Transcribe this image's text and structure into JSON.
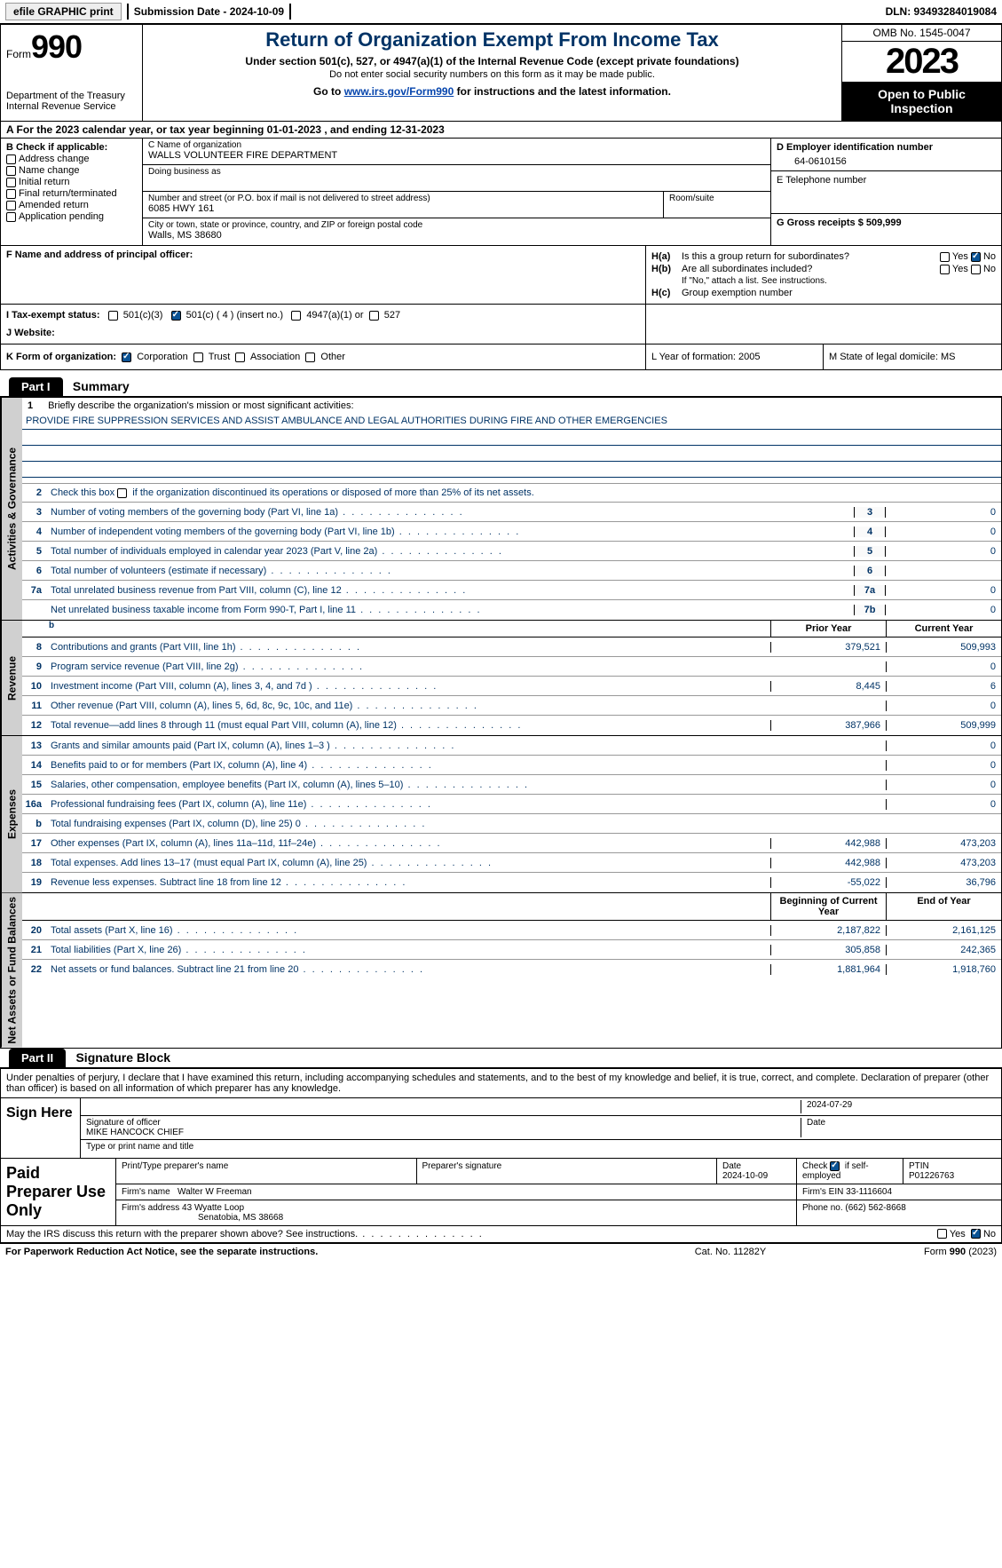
{
  "colors": {
    "header_blue": "#003366",
    "link": "#0645ad",
    "side_gray": "#d0d0d0",
    "shade": "#cccccc"
  },
  "topbar": {
    "efile": "efile GRAPHIC print",
    "submission_label": "Submission Date - 2024-10-09",
    "dln_label": "DLN: 93493284019084"
  },
  "header": {
    "form_word": "Form",
    "form_num": "990",
    "dept": "Department of the Treasury",
    "irs": "Internal Revenue Service",
    "title": "Return of Organization Exempt From Income Tax",
    "sub1": "Under section 501(c), 527, or 4947(a)(1) of the Internal Revenue Code (except private foundations)",
    "sub2": "Do not enter social security numbers on this form as it may be made public.",
    "goto_pre": "Go to ",
    "goto_link": "www.irs.gov/Form990",
    "goto_post": " for instructions and the latest information.",
    "omb": "OMB No. 1545-0047",
    "year": "2023",
    "open": "Open to Public Inspection"
  },
  "row_a": "A For the 2023 calendar year, or tax year beginning 01-01-2023   , and ending 12-31-2023",
  "col_b": {
    "label": "B Check if applicable:",
    "items": [
      "Address change",
      "Name change",
      "Initial return",
      "Final return/terminated",
      "Amended return",
      "Application pending"
    ]
  },
  "col_c": {
    "name_lbl": "C Name of organization",
    "name": "WALLS VOLUNTEER FIRE DEPARTMENT",
    "dba_lbl": "Doing business as",
    "dba": "",
    "street_lbl": "Number and street (or P.O. box if mail is not delivered to street address)",
    "street": "6085 HWY 161",
    "room_lbl": "Room/suite",
    "city_lbl": "City or town, state or province, country, and ZIP or foreign postal code",
    "city": "Walls, MS  38680"
  },
  "col_d": {
    "ein_lbl": "D Employer identification number",
    "ein": "64-0610156",
    "phone_lbl": "E Telephone number",
    "phone": "",
    "gross_lbl": "G Gross receipts $ 509,999"
  },
  "f_block": {
    "f_lbl": "F  Name and address of principal officer:",
    "ha_tag": "H(a)",
    "ha_txt": "Is this a group return for subordinates?",
    "hb_tag": "H(b)",
    "hb_txt": "Are all subordinates included?",
    "hb_note": "If \"No,\" attach a list. See instructions.",
    "hc_tag": "H(c)",
    "hc_txt": "Group exemption number",
    "yes": "Yes",
    "no": "No",
    "ha_checked": "no",
    "hb_checked": ""
  },
  "row_i": {
    "i_lbl": "I   Tax-exempt status:",
    "opt1": "501(c)(3)",
    "opt2": "501(c) ( 4 ) (insert no.)",
    "opt3": "4947(a)(1) or",
    "opt4": "527",
    "checked": "501c4",
    "j_lbl": "J   Website: "
  },
  "row_k": {
    "k_lbl": "K Form of organization:",
    "opts": [
      "Corporation",
      "Trust",
      "Association",
      "Other"
    ],
    "checked": "Corporation",
    "l_lbl": "L Year of formation: 2005",
    "m_lbl": "M State of legal domicile: MS"
  },
  "part1": {
    "tag": "Part I",
    "title": "Summary",
    "line1_lbl": "Briefly describe the organization's mission or most significant activities:",
    "mission": "PROVIDE FIRE SUPPRESSION SERVICES AND ASSIST AMBULANCE AND LEGAL AUTHORITIES DURING FIRE AND OTHER EMERGENCIES",
    "line2": "Check this box      if the organization discontinued its operations or disposed of more than 25% of its net assets.",
    "prior_hdr": "Prior Year",
    "curr_hdr": "Current Year",
    "beg_hdr": "Beginning of Current Year",
    "end_hdr": "End of Year"
  },
  "sides": {
    "gov": "Activities & Governance",
    "rev": "Revenue",
    "exp": "Expenses",
    "net": "Net Assets or Fund Balances"
  },
  "gov_rows": [
    {
      "n": "3",
      "d": "Number of voting members of the governing body (Part VI, line 1a)",
      "box": "3",
      "v": "0"
    },
    {
      "n": "4",
      "d": "Number of independent voting members of the governing body (Part VI, line 1b)",
      "box": "4",
      "v": "0"
    },
    {
      "n": "5",
      "d": "Total number of individuals employed in calendar year 2023 (Part V, line 2a)",
      "box": "5",
      "v": "0"
    },
    {
      "n": "6",
      "d": "Total number of volunteers (estimate if necessary)",
      "box": "6",
      "v": ""
    },
    {
      "n": "7a",
      "d": "Total unrelated business revenue from Part VIII, column (C), line 12",
      "box": "7a",
      "v": "0"
    },
    {
      "n": "",
      "d": "Net unrelated business taxable income from Form 990-T, Part I, line 11",
      "box": "7b",
      "v": "0"
    }
  ],
  "rev_rows": [
    {
      "n": "8",
      "d": "Contributions and grants (Part VIII, line 1h)",
      "p": "379,521",
      "c": "509,993"
    },
    {
      "n": "9",
      "d": "Program service revenue (Part VIII, line 2g)",
      "p": "",
      "c": "0"
    },
    {
      "n": "10",
      "d": "Investment income (Part VIII, column (A), lines 3, 4, and 7d )",
      "p": "8,445",
      "c": "6"
    },
    {
      "n": "11",
      "d": "Other revenue (Part VIII, column (A), lines 5, 6d, 8c, 9c, 10c, and 11e)",
      "p": "",
      "c": "0"
    },
    {
      "n": "12",
      "d": "Total revenue—add lines 8 through 11 (must equal Part VIII, column (A), line 12)",
      "p": "387,966",
      "c": "509,999"
    }
  ],
  "exp_rows": [
    {
      "n": "13",
      "d": "Grants and similar amounts paid (Part IX, column (A), lines 1–3 )",
      "p": "",
      "c": "0"
    },
    {
      "n": "14",
      "d": "Benefits paid to or for members (Part IX, column (A), line 4)",
      "p": "",
      "c": "0"
    },
    {
      "n": "15",
      "d": "Salaries, other compensation, employee benefits (Part IX, column (A), lines 5–10)",
      "p": "",
      "c": "0"
    },
    {
      "n": "16a",
      "d": "Professional fundraising fees (Part IX, column (A), line 11e)",
      "p": "",
      "c": "0"
    },
    {
      "n": "b",
      "d": "Total fundraising expenses (Part IX, column (D), line 25) 0",
      "p": "shade",
      "c": "shade"
    },
    {
      "n": "17",
      "d": "Other expenses (Part IX, column (A), lines 11a–11d, 11f–24e)",
      "p": "442,988",
      "c": "473,203"
    },
    {
      "n": "18",
      "d": "Total expenses. Add lines 13–17 (must equal Part IX, column (A), line 25)",
      "p": "442,988",
      "c": "473,203"
    },
    {
      "n": "19",
      "d": "Revenue less expenses. Subtract line 18 from line 12",
      "p": "-55,022",
      "c": "36,796"
    }
  ],
  "net_rows": [
    {
      "n": "20",
      "d": "Total assets (Part X, line 16)",
      "p": "2,187,822",
      "c": "2,161,125"
    },
    {
      "n": "21",
      "d": "Total liabilities (Part X, line 26)",
      "p": "305,858",
      "c": "242,365"
    },
    {
      "n": "22",
      "d": "Net assets or fund balances. Subtract line 21 from line 20",
      "p": "1,881,964",
      "c": "1,918,760"
    }
  ],
  "part2": {
    "tag": "Part II",
    "title": "Signature Block",
    "decl": "Under penalties of perjury, I declare that I have examined this return, including accompanying schedules and statements, and to the best of my knowledge and belief, it is true, correct, and complete. Declaration of preparer (other than officer) is based on all information of which preparer has any knowledge.",
    "sign_here": "Sign Here",
    "sig_officer_lbl": "Signature of officer",
    "officer_name": "MIKE HANCOCK CHIEF",
    "name_title_lbl": "Type or print name and title",
    "date_lbl": "Date",
    "sig_date": "2024-07-29",
    "paid_prep": "Paid Preparer Use Only",
    "prep_name_lbl": "Print/Type preparer's name",
    "prep_sig_lbl": "Preparer's signature",
    "prep_date_lbl": "Date",
    "prep_date": "2024-10-09",
    "self_emp": "Check         if self-employed",
    "ptin_lbl": "PTIN",
    "ptin": "P01226763",
    "firm_name_lbl": "Firm's name    ",
    "firm_name": "Walter W Freeman",
    "firm_ein_lbl": "Firm's EIN  ",
    "firm_ein": "33-1116604",
    "firm_addr_lbl": "Firm's address ",
    "firm_addr1": "43 Wyatte Loop",
    "firm_addr2": "Senatobia, MS  38668",
    "firm_phone_lbl": "Phone no. ",
    "firm_phone": "(662) 562-8668",
    "discuss": "May the IRS discuss this return with the preparer shown above? See instructions.",
    "discuss_checked": "no"
  },
  "footer": {
    "pra": "For Paperwork Reduction Act Notice, see the separate instructions.",
    "cat": "Cat. No. 11282Y",
    "form": "Form 990 (2023)"
  }
}
